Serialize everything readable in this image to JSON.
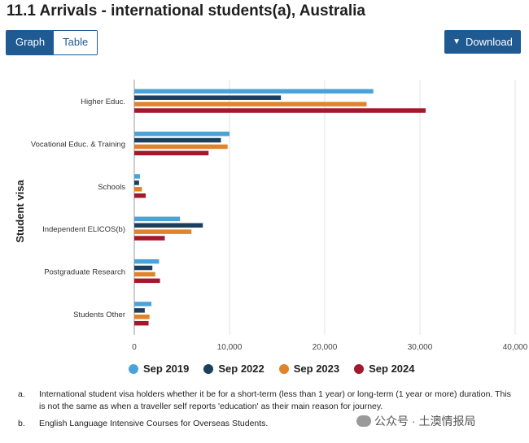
{
  "title": "11.1 Arrivals - international students(a), Australia",
  "tabs": [
    {
      "label": "Graph",
      "active": true
    },
    {
      "label": "Table",
      "active": false
    }
  ],
  "download_label": "Download",
  "chart_data": {
    "type": "bar",
    "orientation": "horizontal",
    "title": "",
    "ylabel": "Student visa",
    "xlabel": "",
    "xlim": [
      0,
      40000
    ],
    "xticks": [
      "0",
      "10,000",
      "20,000",
      "30,000",
      "40,000"
    ],
    "categories": [
      "Higher Educ.",
      "Vocational Educ. & Training",
      "Schools",
      "Independent ELICOS(b)",
      "Postgraduate Research",
      "Students Other"
    ],
    "series": [
      {
        "name": "Sep 2019",
        "color": "#4aa3d8",
        "values": [
          25100,
          10000,
          600,
          4800,
          2600,
          1800
        ]
      },
      {
        "name": "Sep 2022",
        "color": "#1b3f5e",
        "values": [
          15400,
          9100,
          500,
          7200,
          1900,
          1100
        ]
      },
      {
        "name": "Sep 2023",
        "color": "#e0832a",
        "values": [
          24400,
          9800,
          800,
          6000,
          2200,
          1600
        ]
      },
      {
        "name": "Sep 2024",
        "color": "#a3182a",
        "values": [
          30600,
          7800,
          1200,
          3200,
          2700,
          1500
        ]
      }
    ],
    "grid": true,
    "legend_position": "bottom"
  },
  "notes": [
    {
      "key": "a.",
      "text": "International student visa holders whether it be for a short-term (less than 1 year) or long-term (1 year or more) duration. This is not the same as when a traveller self reports 'education' as their main reason for journey."
    },
    {
      "key": "b.",
      "text": "English Language Intensive Courses for Overseas Students."
    }
  ],
  "watermark": "公众号 · 土澳情报局"
}
